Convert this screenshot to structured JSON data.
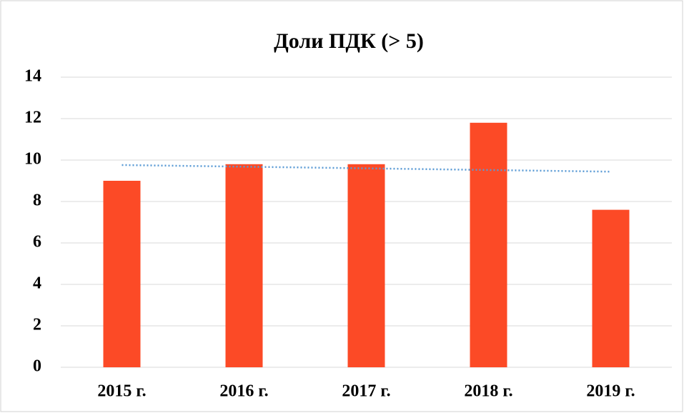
{
  "chart_data": {
    "type": "bar",
    "title": "Доли ПДК (> 5)",
    "categories": [
      "2015 г.",
      "2016 г.",
      "2017 г.",
      "2018 г.",
      "2019 г."
    ],
    "values": [
      9.0,
      9.8,
      9.8,
      11.8,
      7.6
    ],
    "color": "#fc4a26",
    "ylim": [
      0,
      14
    ],
    "yticks": [
      0,
      2,
      4,
      6,
      8,
      10,
      12,
      14
    ],
    "grid": true,
    "trendline": "linear",
    "trendline_color": "#5b9bd5"
  }
}
